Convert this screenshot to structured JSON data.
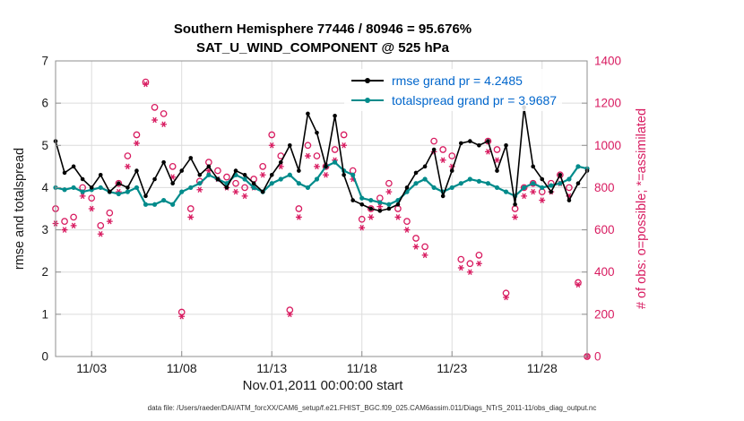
{
  "figure": {
    "title_line1": "Southern Hemisphere 77446 / 80946 = 95.676%",
    "title_line2": "SAT_U_WIND_COMPONENT @ 525 hPa",
    "caption": "data file: /Users/raeder/DAI/ATM_forcXX/CAM6_setup/f.e21.FHIST_BGC.f09_025.CAM6assim.011/Diags_NTrS_2011-11/obs_diag_output.nc"
  },
  "legend": {
    "text_color": "#0066cc",
    "items": [
      {
        "label": "rmse grand pr = 4.2485",
        "color": "#000000"
      },
      {
        "label": "totalspread grand pr = 3.9687",
        "color": "#008b8b"
      }
    ]
  },
  "colors": {
    "obs_pink": "#d81b60",
    "teal": "#008b8b",
    "black": "#000000",
    "grid": "#dcdcdc",
    "box": "#8f8f8f",
    "legend_text": "#0066cc"
  },
  "chart_data": {
    "type": "line",
    "title": "Southern Hemisphere 77446 / 80946 = 95.676%",
    "subtitle": "SAT_U_WIND_COMPONENT @ 525 hPa",
    "x_label": "Nov.01,2011 00:00:00 start",
    "grid": true,
    "legend_position": "top-right-inside",
    "x_range": [
      1,
      30.5
    ],
    "x_ticks": {
      "values": [
        3,
        8,
        13,
        18,
        23,
        28
      ],
      "labels": [
        "11/03",
        "11/08",
        "11/13",
        "11/18",
        "11/23",
        "11/28"
      ]
    },
    "left_axis": {
      "label": "rmse and totalspread",
      "min": 0,
      "max": 7,
      "ticks": [
        0,
        1,
        2,
        3,
        4,
        5,
        6,
        7
      ],
      "color": "#1a1a1a"
    },
    "right_axis": {
      "label": "# of obs: o=possible; *=assimilated",
      "min": 0,
      "max": 1400,
      "ticks": [
        0,
        200,
        400,
        600,
        800,
        1000,
        1200,
        1400
      ],
      "color": "#d81b60"
    },
    "x": [
      1,
      1.5,
      2,
      2.5,
      3,
      3.5,
      4,
      4.5,
      5,
      5.5,
      6,
      6.5,
      7,
      7.5,
      8,
      8.5,
      9,
      9.5,
      10,
      10.5,
      11,
      11.5,
      12,
      12.5,
      13,
      13.5,
      14,
      14.5,
      15,
      15.5,
      16,
      16.5,
      17,
      17.5,
      18,
      18.5,
      19,
      19.5,
      20,
      20.5,
      21,
      21.5,
      22,
      22.5,
      23,
      23.5,
      24,
      24.5,
      25,
      25.5,
      26,
      26.5,
      27,
      27.5,
      28,
      28.5,
      29,
      29.5,
      30,
      30.5
    ],
    "series": [
      {
        "name": "rmse grand pr = 4.2485",
        "type": "line",
        "axis": "left",
        "color": "#000000",
        "marker": "dot",
        "values": [
          5.1,
          4.35,
          4.5,
          4.2,
          4.0,
          4.3,
          3.9,
          4.1,
          4.0,
          4.4,
          3.8,
          4.2,
          4.6,
          4.1,
          4.4,
          4.7,
          4.3,
          4.5,
          4.2,
          4.0,
          4.4,
          4.3,
          4.1,
          3.9,
          4.3,
          4.6,
          5.0,
          4.4,
          5.75,
          5.3,
          4.5,
          5.7,
          4.3,
          3.7,
          3.6,
          3.5,
          3.45,
          3.5,
          3.6,
          4.0,
          4.35,
          4.5,
          4.9,
          3.8,
          4.4,
          5.05,
          5.1,
          5.0,
          5.1,
          4.4,
          5.0,
          3.6,
          5.9,
          4.5,
          4.2,
          3.9,
          4.3,
          3.7,
          4.1,
          4.4
        ]
      },
      {
        "name": "totalspread grand pr = 3.9687",
        "type": "line",
        "axis": "left",
        "color": "#008b8b",
        "marker": "dot",
        "values": [
          4.0,
          3.95,
          4.0,
          3.9,
          3.95,
          4.0,
          3.9,
          3.85,
          3.9,
          4.0,
          3.6,
          3.6,
          3.7,
          3.6,
          3.9,
          4.0,
          4.1,
          4.3,
          4.2,
          4.1,
          4.3,
          4.2,
          4.0,
          3.9,
          4.1,
          4.2,
          4.3,
          4.1,
          4.0,
          4.2,
          4.5,
          4.6,
          4.4,
          4.3,
          3.75,
          3.7,
          3.65,
          3.6,
          3.7,
          3.9,
          4.1,
          4.2,
          4.0,
          3.9,
          4.0,
          4.1,
          4.2,
          4.15,
          4.1,
          4.0,
          3.9,
          3.8,
          4.0,
          4.1,
          4.0,
          4.05,
          4.1,
          4.2,
          4.5,
          4.45
        ]
      },
      {
        "name": "possible obs",
        "type": "scatter",
        "axis": "right",
        "color": "#d81b60",
        "marker": "circle",
        "values": [
          700,
          640,
          660,
          800,
          750,
          620,
          680,
          820,
          950,
          1050,
          1300,
          1180,
          1150,
          900,
          210,
          700,
          830,
          920,
          880,
          850,
          820,
          800,
          840,
          900,
          1050,
          950,
          220,
          700,
          1000,
          950,
          900,
          980,
          1050,
          880,
          650,
          700,
          750,
          820,
          700,
          640,
          560,
          520,
          1020,
          980,
          950,
          460,
          440,
          480,
          1020,
          980,
          300,
          700,
          800,
          820,
          780,
          820,
          860,
          800,
          350,
          0
        ]
      },
      {
        "name": "assimilated obs",
        "type": "scatter",
        "axis": "right",
        "color": "#d81b60",
        "marker": "asterisk",
        "values": [
          630,
          600,
          620,
          760,
          700,
          580,
          640,
          780,
          900,
          1010,
          1290,
          1120,
          1100,
          850,
          190,
          660,
          790,
          880,
          840,
          800,
          780,
          760,
          800,
          860,
          1000,
          900,
          200,
          660,
          950,
          900,
          860,
          930,
          1000,
          840,
          610,
          660,
          710,
          780,
          660,
          600,
          520,
          480,
          970,
          930,
          900,
          420,
          400,
          440,
          970,
          930,
          280,
          660,
          760,
          780,
          740,
          780,
          820,
          760,
          340,
          0
        ]
      }
    ]
  }
}
